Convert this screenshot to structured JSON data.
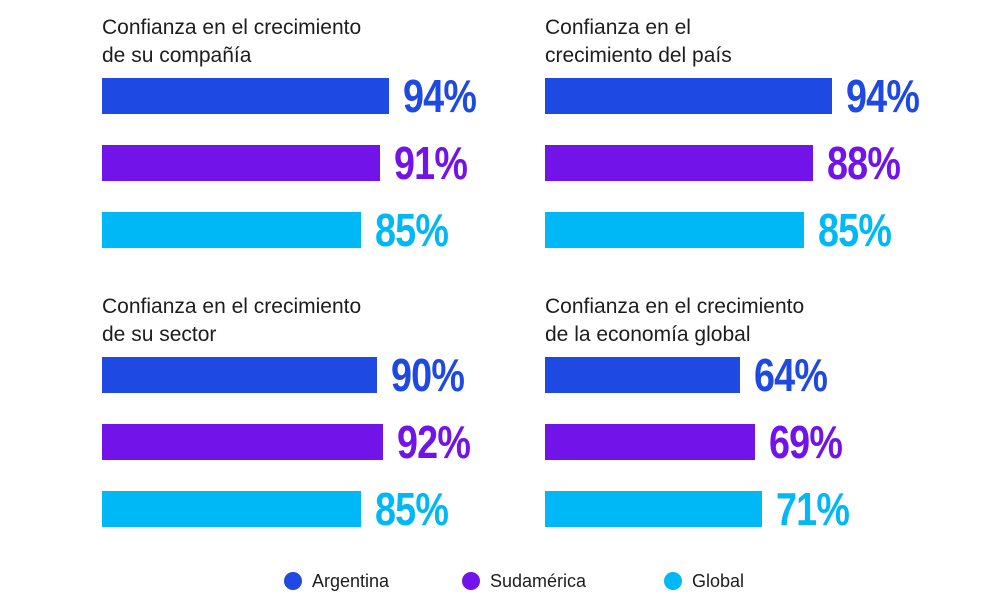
{
  "chart_data": [
    {
      "type": "bar",
      "orientation": "horizontal",
      "title": "Confianza en el crecimiento de su compañía",
      "title_lines": [
        "Confianza en el crecimiento",
        "de su compañía"
      ],
      "categories": [
        "Argentina",
        "Sudamérica",
        "Global"
      ],
      "values": [
        94,
        91,
        85
      ],
      "labels": [
        "94%",
        "91%",
        "85%"
      ]
    },
    {
      "type": "bar",
      "orientation": "horizontal",
      "title": "Confianza en el crecimiento del país",
      "title_lines": [
        "Confianza en el",
        "crecimiento del país"
      ],
      "categories": [
        "Argentina",
        "Sudamérica",
        "Global"
      ],
      "values": [
        94,
        88,
        85
      ],
      "labels": [
        "94%",
        "88%",
        "85%"
      ]
    },
    {
      "type": "bar",
      "orientation": "horizontal",
      "title": "Confianza en el crecimiento de su sector",
      "title_lines": [
        "Confianza en el crecimiento",
        "de su sector"
      ],
      "categories": [
        "Argentina",
        "Sudamérica",
        "Global"
      ],
      "values": [
        90,
        92,
        85
      ],
      "labels": [
        "90%",
        "92%",
        "85%"
      ]
    },
    {
      "type": "bar",
      "orientation": "horizontal",
      "title": "Confianza en el crecimiento de la economía global",
      "title_lines": [
        "Confianza en el crecimiento",
        "de la economía global"
      ],
      "categories": [
        "Argentina",
        "Sudamérica",
        "Global"
      ],
      "values": [
        64,
        69,
        71
      ],
      "labels": [
        "64%",
        "69%",
        "71%"
      ]
    }
  ],
  "legend": [
    {
      "label": "Argentina",
      "color": "#1e49e2"
    },
    {
      "label": "Sudamérica",
      "color": "#7213ea"
    },
    {
      "label": "Global",
      "color": "#00b8f5"
    }
  ],
  "colors": {
    "argentina": "#1e49e2",
    "sudamerica": "#7213ea",
    "global": "#00b8f5"
  }
}
